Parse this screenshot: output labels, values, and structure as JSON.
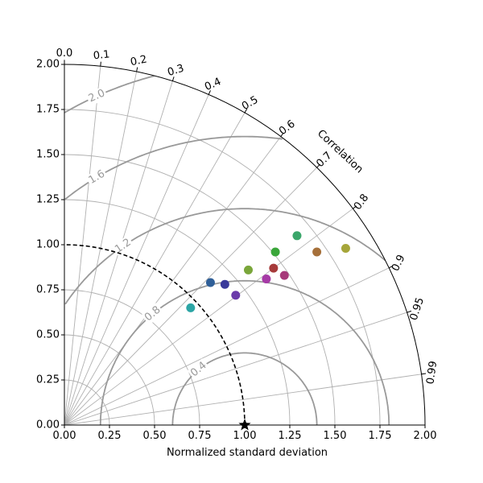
{
  "chart_data": {
    "type": "scatter",
    "subtype": "taylor-diagram",
    "title": "",
    "xlabel": "Normalized standard deviation",
    "angle_label": "Correlation",
    "std_range": [
      0,
      2
    ],
    "std_ticks": [
      "0.00",
      "0.25",
      "0.50",
      "0.75",
      "1.00",
      "1.25",
      "1.50",
      "1.75",
      "2.00"
    ],
    "correlation_ticks": [
      "0.0",
      "0.1",
      "0.2",
      "0.3",
      "0.4",
      "0.5",
      "0.6",
      "0.7",
      "0.8",
      "0.9",
      "0.95",
      "0.99"
    ],
    "grid": true,
    "reference": {
      "std": 1.0,
      "correlation": 1.0,
      "marker": "star"
    },
    "rms_contours": [
      0.4,
      0.8,
      1.2,
      1.6,
      2.0
    ],
    "rms_contour_labels": [
      "0.4",
      "0.8",
      "1.2",
      "1.6",
      "2.0"
    ],
    "points": [
      {
        "x": 0.7,
        "y": 0.65,
        "color": "#2ca5a5"
      },
      {
        "x": 0.81,
        "y": 0.79,
        "color": "#2f5f98"
      },
      {
        "x": 0.89,
        "y": 0.78,
        "color": "#3a3a9a"
      },
      {
        "x": 0.95,
        "y": 0.72,
        "color": "#6a3aaa"
      },
      {
        "x": 1.02,
        "y": 0.86,
        "color": "#7aa63a"
      },
      {
        "x": 1.12,
        "y": 0.81,
        "color": "#a63aa6"
      },
      {
        "x": 1.16,
        "y": 0.87,
        "color": "#a63a3a"
      },
      {
        "x": 1.17,
        "y": 0.96,
        "color": "#3aa63a"
      },
      {
        "x": 1.22,
        "y": 0.83,
        "color": "#a63a7a"
      },
      {
        "x": 1.29,
        "y": 1.05,
        "color": "#3aa66a"
      },
      {
        "x": 1.4,
        "y": 0.96,
        "color": "#a6703a"
      },
      {
        "x": 1.56,
        "y": 0.98,
        "color": "#a6a63a"
      }
    ]
  }
}
